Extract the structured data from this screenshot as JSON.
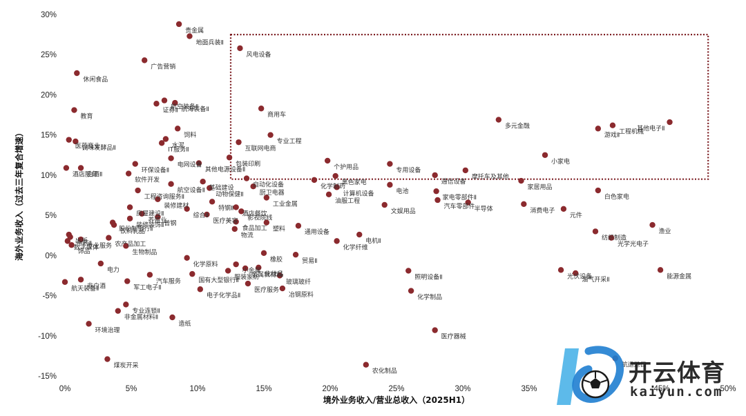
{
  "chart_data": {
    "type": "scatter",
    "xlabel": "境外业务收入/营业总收入（2025H1）",
    "ylabel": "海外业务收入（过去三年复合增速）",
    "xlim": [
      0,
      50
    ],
    "ylim": [
      -15,
      30
    ],
    "x_ticks": [
      "0%",
      "5%",
      "10%",
      "15%",
      "20%",
      "25%",
      "30%",
      "35%",
      "40%",
      "45%",
      "50%"
    ],
    "y_ticks": [
      "30%",
      "25%",
      "20%",
      "15%",
      "10%",
      "5%",
      "0%",
      "-5%",
      "-10%",
      "-15%"
    ],
    "grid": false,
    "marker_color": "#8b2a2e",
    "highlight_box": {
      "x_range": [
        12.5,
        48.5
      ],
      "y_range": [
        9.5,
        27.5
      ],
      "style": "dotted",
      "color": "#7b1a1f"
    },
    "points": [
      {
        "name": "贵金属",
        "x": 8.6,
        "y": 28.8
      },
      {
        "name": "地面兵装Ⅱ",
        "x": 9.4,
        "y": 27.3
      },
      {
        "name": "风电设备",
        "x": 13.2,
        "y": 25.8
      },
      {
        "name": "广告营销",
        "x": 6.0,
        "y": 24.3
      },
      {
        "name": "休闲食品",
        "x": 0.9,
        "y": 22.7
      },
      {
        "name": "航空装备Ⅱ",
        "x": 7.5,
        "y": 19.3
      },
      {
        "name": "证券Ⅱ",
        "x": 6.9,
        "y": 18.9
      },
      {
        "name": "航海装备Ⅱ",
        "x": 8.3,
        "y": 19.0
      },
      {
        "name": "教育",
        "x": 0.7,
        "y": 18.1
      },
      {
        "name": "商用车",
        "x": 14.8,
        "y": 18.3
      },
      {
        "name": "多元金融",
        "x": 32.7,
        "y": 16.9
      },
      {
        "name": "其他电子Ⅱ",
        "x": 45.6,
        "y": 16.6
      },
      {
        "name": "工程机械",
        "x": 41.3,
        "y": 16.2
      },
      {
        "name": "游戏Ⅱ",
        "x": 40.2,
        "y": 15.8
      },
      {
        "name": "饲料",
        "x": 8.5,
        "y": 15.8
      },
      {
        "name": "专业工程",
        "x": 15.5,
        "y": 15.0
      },
      {
        "name": "医药商业",
        "x": 0.3,
        "y": 14.4
      },
      {
        "name": "调味发酵品Ⅱ",
        "x": 0.8,
        "y": 14.2
      },
      {
        "name": "水泥",
        "x": 7.6,
        "y": 14.5
      },
      {
        "name": "IT服务Ⅱ",
        "x": 7.3,
        "y": 14.0
      },
      {
        "name": "互联网电商",
        "x": 13.1,
        "y": 14.1
      },
      {
        "name": "小家电",
        "x": 36.2,
        "y": 12.5
      },
      {
        "name": "个护用品",
        "x": 19.8,
        "y": 11.8
      },
      {
        "name": "环保设备Ⅱ",
        "x": 5.3,
        "y": 11.4
      },
      {
        "name": "电网设备",
        "x": 8.0,
        "y": 12.1
      },
      {
        "name": "包装印刷",
        "x": 12.4,
        "y": 12.2
      },
      {
        "name": "专用设备",
        "x": 24.5,
        "y": 11.4
      },
      {
        "name": "其他电源设备Ⅱ",
        "x": 10.1,
        "y": 11.5
      },
      {
        "name": "白酒Ⅱ",
        "x": 1.2,
        "y": 10.9
      },
      {
        "name": "酒店服务",
        "x": 0.1,
        "y": 10.9
      },
      {
        "name": "摩托车及其他",
        "x": 30.2,
        "y": 10.6
      },
      {
        "name": "软件开发",
        "x": 4.8,
        "y": 10.2
      },
      {
        "name": "通信设备",
        "x": 27.9,
        "y": 10.0
      },
      {
        "name": "化学制药",
        "x": 18.8,
        "y": 9.4
      },
      {
        "name": "黑色家电",
        "x": 20.4,
        "y": 9.9
      },
      {
        "name": "自动化设备",
        "x": 13.7,
        "y": 9.6
      },
      {
        "name": "基础建设",
        "x": 10.4,
        "y": 9.2
      },
      {
        "name": "航空设备Ⅱ",
        "x": 8.0,
        "y": 8.9
      },
      {
        "name": "家居用品",
        "x": 34.4,
        "y": 9.3
      },
      {
        "name": "电池",
        "x": 24.5,
        "y": 8.8
      },
      {
        "name": "家电零部件Ⅱ",
        "x": 28.0,
        "y": 8.0
      },
      {
        "name": "动物保健Ⅱ",
        "x": 10.9,
        "y": 8.4
      },
      {
        "name": "厨卫电器",
        "x": 14.2,
        "y": 8.6
      },
      {
        "name": "计算机设备",
        "x": 20.5,
        "y": 8.5
      },
      {
        "name": "工程咨询服务Ⅱ",
        "x": 5.5,
        "y": 8.1
      },
      {
        "name": "白色家电",
        "x": 40.2,
        "y": 8.1
      },
      {
        "name": "装修建材",
        "x": 7.0,
        "y": 7.0
      },
      {
        "name": "工业金属",
        "x": 15.2,
        "y": 7.2
      },
      {
        "name": "油服工程",
        "x": 19.9,
        "y": 7.6
      },
      {
        "name": "文娱用品",
        "x": 24.1,
        "y": 6.3
      },
      {
        "name": "汽车零部件",
        "x": 28.1,
        "y": 6.9
      },
      {
        "name": "特钢Ⅱ",
        "x": 11.1,
        "y": 6.7
      },
      {
        "name": "房屋建设Ⅱ",
        "x": 4.9,
        "y": 6.0
      },
      {
        "name": "综合Ⅱ",
        "x": 9.2,
        "y": 5.8
      },
      {
        "name": "消费电子",
        "x": 34.6,
        "y": 6.4
      },
      {
        "name": "半导体",
        "x": 30.4,
        "y": 6.6
      },
      {
        "name": "元件",
        "x": 37.6,
        "y": 5.8
      },
      {
        "name": "养殖业",
        "x": 5.8,
        "y": 5.2
      },
      {
        "name": "装修装饰Ⅱ",
        "x": 4.9,
        "y": 4.6
      },
      {
        "name": "酒店餐饮",
        "x": 12.9,
        "y": 6.0
      },
      {
        "name": "影视院线",
        "x": 13.3,
        "y": 5.5
      },
      {
        "name": "医疗美容",
        "x": 10.7,
        "y": 5.1
      },
      {
        "name": "普钢",
        "x": 7.0,
        "y": 4.8
      },
      {
        "name": "股份制银行Ⅱ",
        "x": 3.6,
        "y": 4.1
      },
      {
        "name": "饮料乳品",
        "x": 3.7,
        "y": 3.8
      },
      {
        "name": "食品加工",
        "x": 12.9,
        "y": 4.2
      },
      {
        "name": "塑料",
        "x": 15.2,
        "y": 4.1
      },
      {
        "name": "通用设备",
        "x": 17.6,
        "y": 3.7
      },
      {
        "name": "物流",
        "x": 12.8,
        "y": 3.3
      },
      {
        "name": "渔业",
        "x": 44.3,
        "y": 3.8
      },
      {
        "name": "纺织制造",
        "x": 40.0,
        "y": 3.0
      },
      {
        "name": "光学光电子",
        "x": 41.2,
        "y": 2.2
      },
      {
        "name": "出版",
        "x": 0.3,
        "y": 2.6
      },
      {
        "name": "中药Ⅱ",
        "x": 0.4,
        "y": 2.3
      },
      {
        "name": "数字媒体",
        "x": 0.2,
        "y": 1.8
      },
      {
        "name": "饰品",
        "x": 0.5,
        "y": 1.3
      },
      {
        "name": "专业服务",
        "x": 1.2,
        "y": 2.0
      },
      {
        "name": "农产品加工",
        "x": 3.3,
        "y": 2.2
      },
      {
        "name": "电机Ⅱ",
        "x": 22.2,
        "y": 2.6
      },
      {
        "name": "化学纤维",
        "x": 20.5,
        "y": 1.8
      },
      {
        "name": "生物制品",
        "x": 4.6,
        "y": 1.2
      },
      {
        "name": "橡胶",
        "x": 15.0,
        "y": 0.3
      },
      {
        "name": "化学原料",
        "x": 9.2,
        "y": -0.3
      },
      {
        "name": "贸易Ⅱ",
        "x": 17.4,
        "y": 0.1
      },
      {
        "name": "小金属",
        "x": 12.9,
        "y": -1.1
      },
      {
        "name": "电力",
        "x": 2.7,
        "y": -1.0
      },
      {
        "name": "服装家纺",
        "x": 12.3,
        "y": -1.9
      },
      {
        "name": "化妆品",
        "x": 14.6,
        "y": -1.5
      },
      {
        "name": "金属新材料",
        "x": 13.6,
        "y": -1.6
      },
      {
        "name": "照明设备Ⅱ",
        "x": 25.9,
        "y": -1.9
      },
      {
        "name": "光伏设备",
        "x": 37.4,
        "y": -1.8
      },
      {
        "name": "能源金属",
        "x": 44.9,
        "y": -1.8
      },
      {
        "name": "油气开采Ⅱ",
        "x": 38.5,
        "y": -2.2
      },
      {
        "name": "玻璃玻纤",
        "x": 16.2,
        "y": -2.5
      },
      {
        "name": "国有大型银行Ⅱ",
        "x": 9.6,
        "y": -2.3
      },
      {
        "name": "汽车服务",
        "x": 6.4,
        "y": -2.4
      },
      {
        "name": "非白酒",
        "x": 1.2,
        "y": -3.0
      },
      {
        "name": "航天装备Ⅱ",
        "x": 0.0,
        "y": -3.3
      },
      {
        "name": "军工电子Ⅱ",
        "x": 4.7,
        "y": -3.2
      },
      {
        "name": "医疗服务",
        "x": 13.8,
        "y": -3.5
      },
      {
        "name": "冶钢原料",
        "x": 16.4,
        "y": -4.1
      },
      {
        "name": "电子化学品Ⅱ",
        "x": 10.2,
        "y": -4.2
      },
      {
        "name": "化学制品",
        "x": 26.1,
        "y": -4.4
      },
      {
        "name": "专业连锁Ⅱ",
        "x": 4.6,
        "y": -6.1
      },
      {
        "name": "非金属材料Ⅱ",
        "x": 4.0,
        "y": -6.9
      },
      {
        "name": "造纸",
        "x": 8.1,
        "y": -7.7
      },
      {
        "name": "环境治理",
        "x": 1.8,
        "y": -8.5
      },
      {
        "name": "医疗器械",
        "x": 27.9,
        "y": -9.3
      },
      {
        "name": "航运港口",
        "x": 41.5,
        "y": -12.8
      },
      {
        "name": "煤炭开采",
        "x": 3.2,
        "y": -12.9
      },
      {
        "name": "农化制品",
        "x": 22.7,
        "y": -13.6
      }
    ]
  },
  "watermark": {
    "brand": "开云体育",
    "site": "kaiyun.com"
  }
}
